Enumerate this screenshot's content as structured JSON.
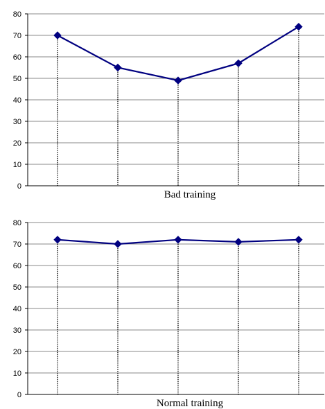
{
  "chart_data": [
    {
      "type": "line",
      "title": "Bad training",
      "xlabel": "",
      "ylabel": "",
      "ylim": [
        0,
        80
      ],
      "yticks": [
        0,
        10,
        20,
        30,
        40,
        50,
        60,
        70,
        80
      ],
      "x": [
        1,
        2,
        3,
        4,
        5
      ],
      "series": [
        {
          "values": [
            70,
            55,
            49,
            57,
            74
          ]
        }
      ],
      "grid": true,
      "drop_lines": true,
      "line_color": "#000080",
      "marker": "diamond"
    },
    {
      "type": "line",
      "title": "Normal training",
      "xlabel": "",
      "ylabel": "",
      "ylim": [
        0,
        80
      ],
      "yticks": [
        0,
        10,
        20,
        30,
        40,
        50,
        60,
        70,
        80
      ],
      "x": [
        1,
        2,
        3,
        4,
        5
      ],
      "series": [
        {
          "values": [
            72,
            70,
            72,
            71,
            72
          ]
        }
      ],
      "grid": true,
      "drop_lines": true,
      "line_color": "#000080",
      "marker": "diamond"
    }
  ]
}
